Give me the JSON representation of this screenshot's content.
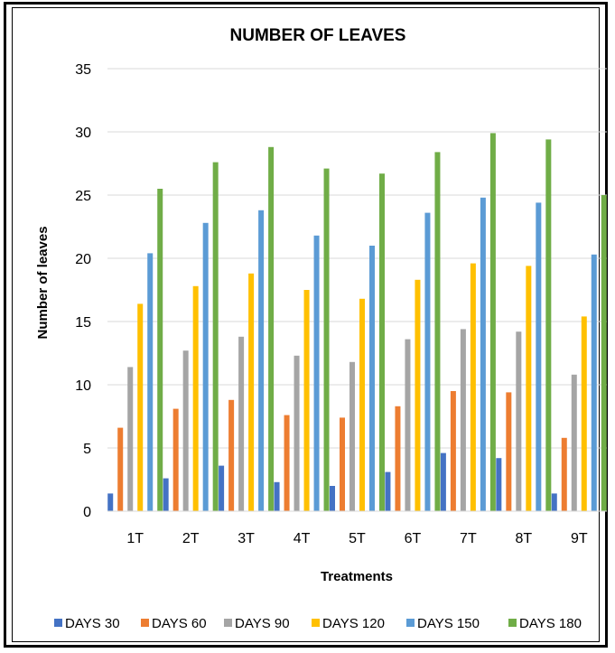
{
  "chart_data": {
    "type": "bar",
    "title": "NUMBER OF LEAVES",
    "xlabel": "Treatments",
    "ylabel": "Number of leaves",
    "ylim": [
      0,
      35
    ],
    "yticks": [
      0,
      5,
      10,
      15,
      20,
      25,
      30,
      35
    ],
    "grid": true,
    "legend_position": "bottom",
    "categories": [
      "1T",
      "2T",
      "3T",
      "4T",
      "5T",
      "6T",
      "7T",
      "8T",
      "9T"
    ],
    "series": [
      {
        "name": "DAYS 30",
        "color": "#4472C4",
        "values": [
          1.4,
          2.6,
          3.6,
          2.3,
          2.0,
          3.1,
          4.6,
          4.2,
          1.4
        ]
      },
      {
        "name": "DAYS 60",
        "color": "#ED7D31",
        "values": [
          6.6,
          8.1,
          8.8,
          7.6,
          7.4,
          8.3,
          9.5,
          9.4,
          5.8
        ]
      },
      {
        "name": "DAYS 90",
        "color": "#A5A5A5",
        "values": [
          11.4,
          12.7,
          13.8,
          12.3,
          11.8,
          13.6,
          14.4,
          14.2,
          10.8
        ]
      },
      {
        "name": "DAYS 120",
        "color": "#FFC000",
        "values": [
          16.4,
          17.8,
          18.8,
          17.5,
          16.8,
          18.3,
          19.6,
          19.4,
          15.4
        ]
      },
      {
        "name": "DAYS 150",
        "color": "#5B9BD5",
        "values": [
          20.4,
          22.8,
          23.8,
          21.8,
          21.0,
          23.6,
          24.8,
          24.4,
          20.3
        ]
      },
      {
        "name": "DAYS 180",
        "color": "#70AD47",
        "values": [
          25.5,
          27.6,
          28.8,
          27.1,
          26.7,
          28.4,
          29.9,
          29.4,
          25.0
        ]
      }
    ]
  }
}
